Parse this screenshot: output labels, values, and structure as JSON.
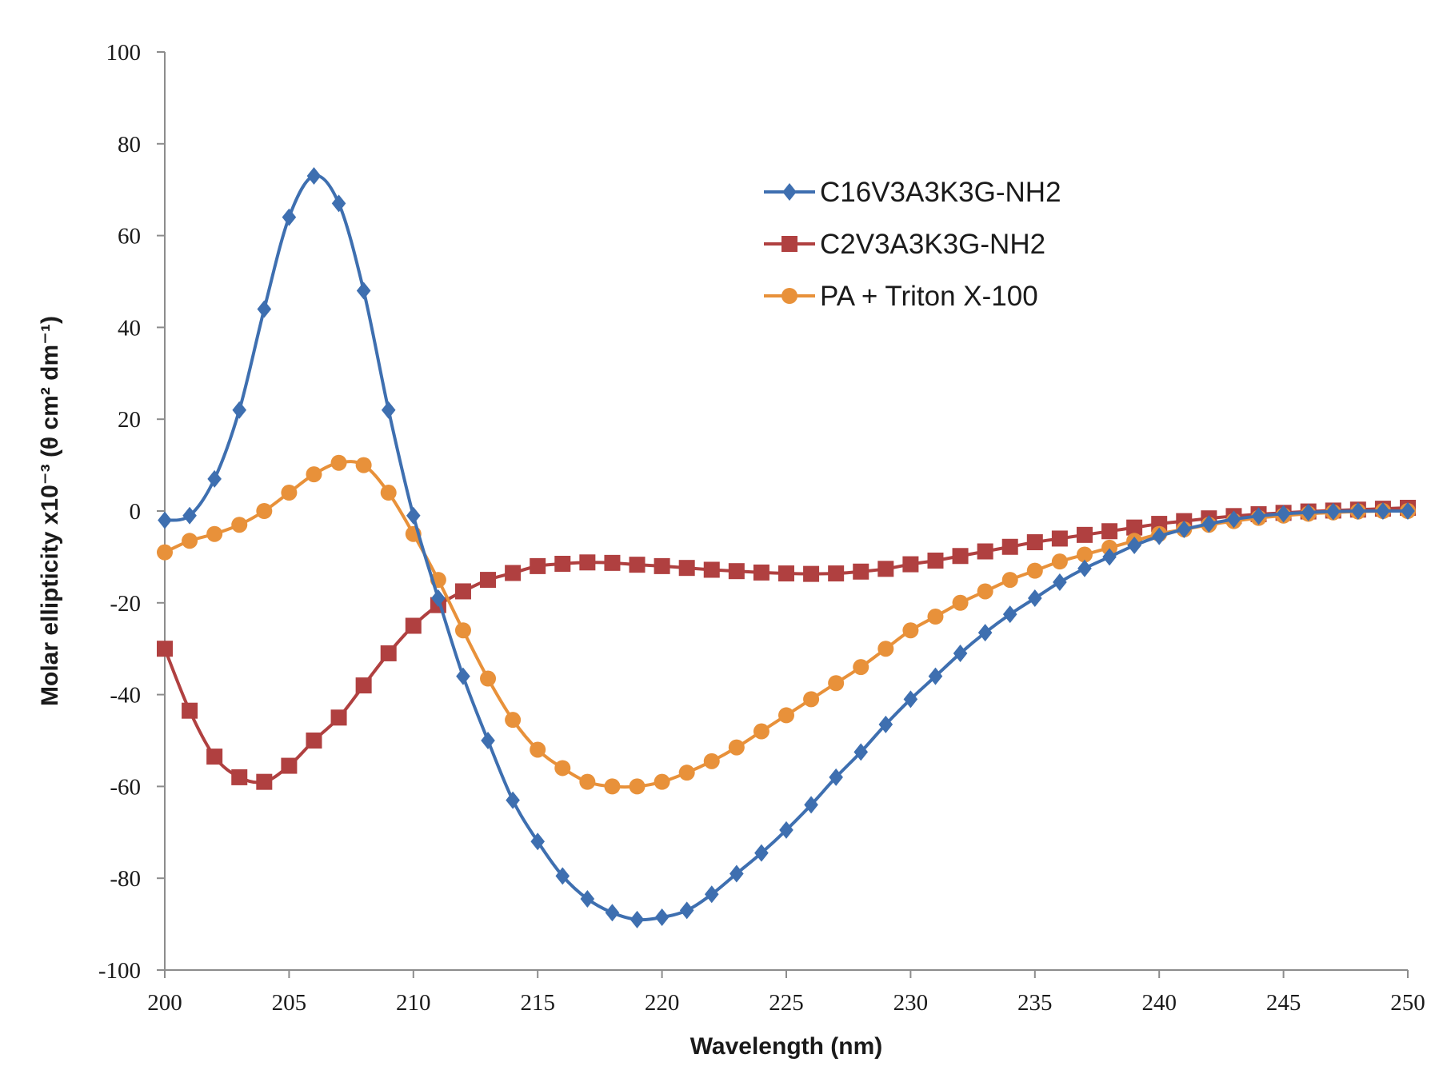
{
  "chart_data": {
    "type": "line",
    "title": "",
    "xlabel": "Wavelength (nm)",
    "ylabel": "Molar ellipticity x10⁻³ (θ cm² dm⁻¹)",
    "xlim": [
      200,
      250
    ],
    "ylim": [
      -100,
      100
    ],
    "x_ticks": [
      200,
      205,
      210,
      215,
      220,
      225,
      230,
      235,
      240,
      245,
      250
    ],
    "y_ticks": [
      -100,
      -80,
      -60,
      -40,
      -20,
      0,
      20,
      40,
      60,
      80,
      100
    ],
    "x_tick_labels": [
      "200",
      "205",
      "210",
      "215",
      "220",
      "225",
      "230",
      "235",
      "240",
      "245",
      "250"
    ],
    "y_tick_labels": [
      "-100",
      "-80",
      "-60",
      "-40",
      "-20",
      "0",
      "20",
      "40",
      "60",
      "80",
      "100"
    ],
    "grid": false,
    "legend_position": "top-right",
    "x": [
      200,
      201,
      202,
      203,
      204,
      205,
      206,
      207,
      208,
      209,
      210,
      211,
      212,
      213,
      214,
      215,
      216,
      217,
      218,
      219,
      220,
      221,
      222,
      223,
      224,
      225,
      226,
      227,
      228,
      229,
      230,
      231,
      232,
      233,
      234,
      235,
      236,
      237,
      238,
      239,
      240,
      241,
      242,
      243,
      244,
      245,
      246,
      247,
      248,
      249,
      250
    ],
    "series": [
      {
        "name": "C16V3A3K3G-NH2",
        "color": "#3e6fb0",
        "marker": "diamond",
        "values": [
          -2,
          -1,
          7,
          22,
          44,
          64,
          73,
          67,
          48,
          22,
          -1,
          -19,
          -36,
          -50,
          -63,
          -72,
          -79.5,
          -84.5,
          -87.5,
          -89,
          -88.5,
          -87,
          -83.5,
          -79,
          -74.5,
          -69.5,
          -64,
          -58,
          -52.5,
          -46.5,
          -41,
          -36,
          -31,
          -26.5,
          -22.5,
          -19,
          -15.5,
          -12.5,
          -10,
          -7.5,
          -5.5,
          -4,
          -2.8,
          -1.8,
          -1.1,
          -0.6,
          -0.3,
          -0.1,
          0,
          0,
          0
        ]
      },
      {
        "name": "C2V3A3K3G-NH2",
        "color": "#b04040",
        "marker": "square",
        "values": [
          -30,
          -43.5,
          -53.5,
          -58,
          -59,
          -55.5,
          -50,
          -45,
          -38,
          -31,
          -25,
          -20.5,
          -17.5,
          -15,
          -13.5,
          -12,
          -11.5,
          -11.2,
          -11.3,
          -11.7,
          -12,
          -12.4,
          -12.8,
          -13.1,
          -13.4,
          -13.6,
          -13.7,
          -13.6,
          -13.2,
          -12.6,
          -11.6,
          -10.8,
          -9.8,
          -8.8,
          -7.8,
          -6.8,
          -6,
          -5.2,
          -4.4,
          -3.6,
          -2.8,
          -2.2,
          -1.6,
          -1.1,
          -0.7,
          -0.4,
          -0.1,
          0.1,
          0.3,
          0.5,
          0.7
        ]
      },
      {
        "name": "PA + Triton X-100",
        "color": "#e8913a",
        "marker": "circle",
        "values": [
          -9,
          -6.5,
          -5,
          -3,
          0,
          4,
          8,
          10.5,
          10,
          4,
          -5,
          -15,
          -26,
          -36.5,
          -45.5,
          -52,
          -56,
          -59,
          -60,
          -60,
          -59,
          -57,
          -54.5,
          -51.5,
          -48,
          -44.5,
          -41,
          -37.5,
          -34,
          -30,
          -26,
          -23,
          -20,
          -17.5,
          -15,
          -13,
          -11,
          -9.5,
          -8,
          -6.5,
          -5,
          -4,
          -3,
          -2.2,
          -1.5,
          -1,
          -0.6,
          -0.3,
          -0.1,
          0,
          0
        ]
      }
    ]
  }
}
